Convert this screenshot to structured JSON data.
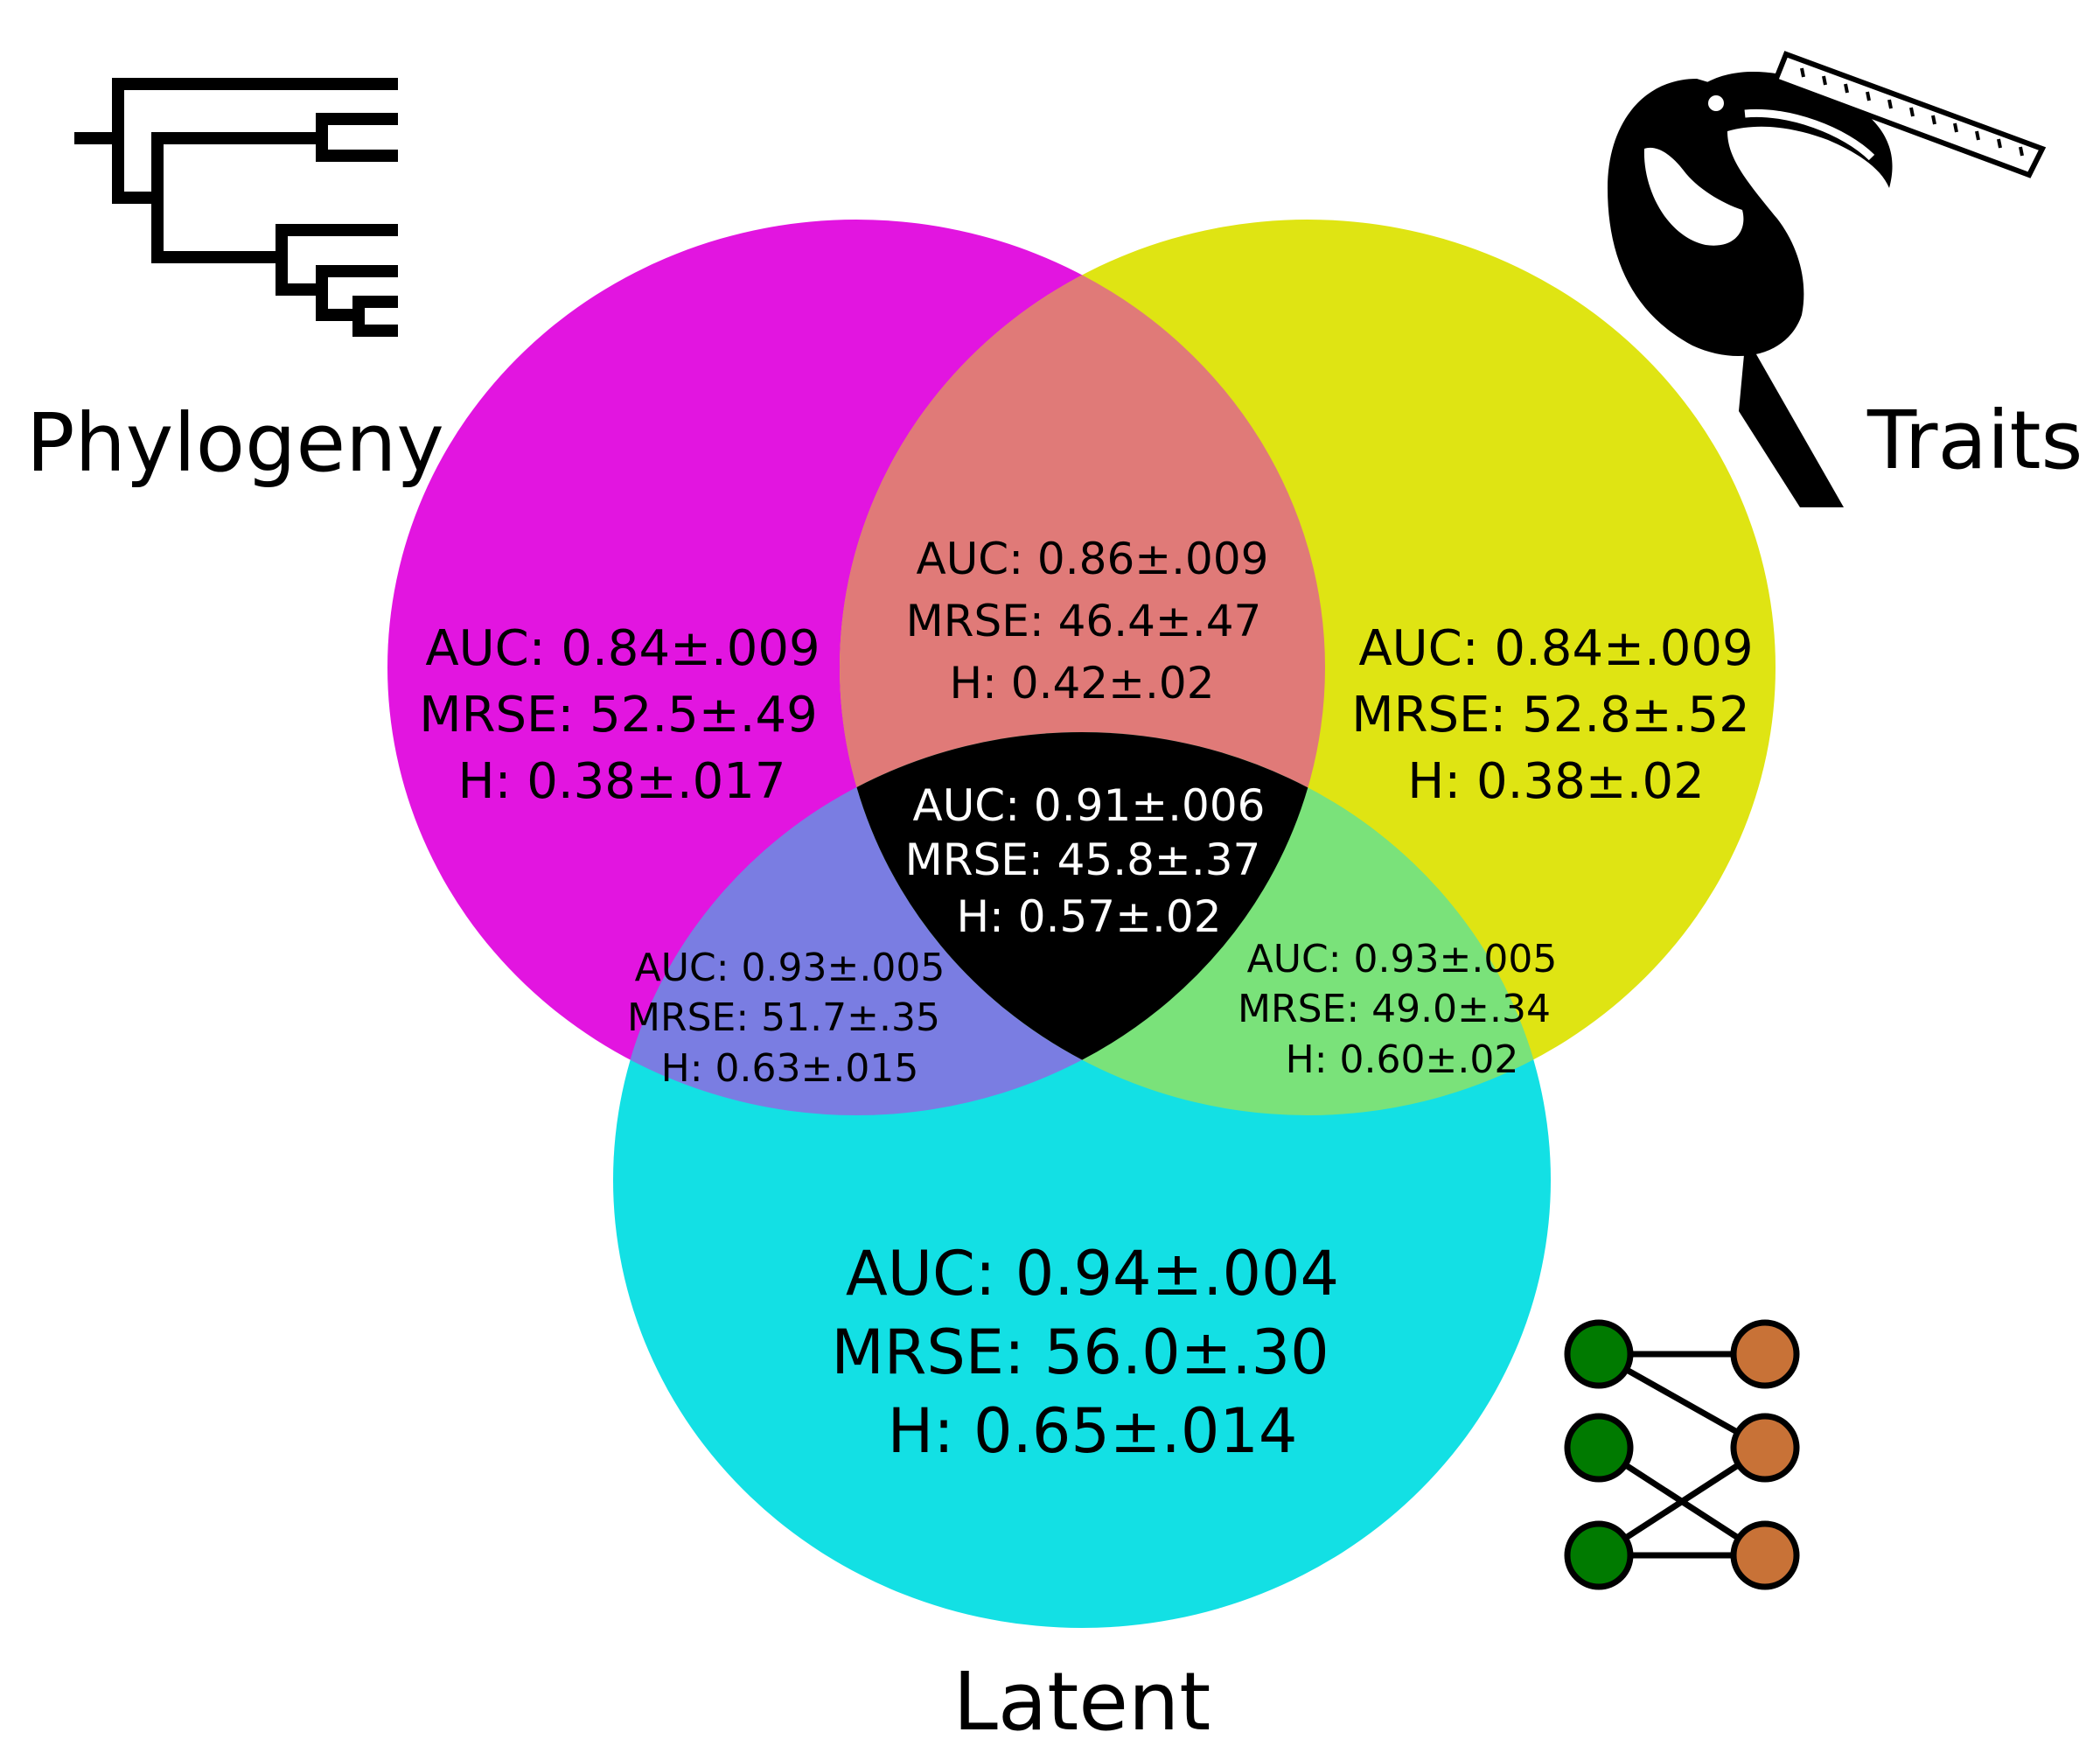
{
  "colors": {
    "phylogeny_only": "#e215e0",
    "traits_only": "#dfe413",
    "latent_only": "#13e0e4",
    "phylogeny_traits": "#e07a78",
    "phylogeny_latent": "#7a7de2",
    "traits_latent": "#7ae27a",
    "all_three": "#000000",
    "network_left_nodes": "#007a00",
    "network_right_nodes": "#c87237"
  },
  "sets": {
    "phylogeny": {
      "label": "Phylogeny",
      "icon": "phylogenetic-tree-icon"
    },
    "traits": {
      "label": "Traits",
      "icon": "toucan-with-ruler-icon"
    },
    "latent": {
      "label": "Latent",
      "icon": "bipartite-network-icon"
    }
  },
  "regions": {
    "phylogeny_only": {
      "auc": "AUC: 0.84±.009",
      "mrse": "MRSE: 52.5±.49",
      "h": "H: 0.38±.017"
    },
    "traits_only": {
      "auc": "AUC: 0.84±.009",
      "mrse": "MRSE: 52.8±.52",
      "h": "H: 0.38±.02"
    },
    "latent_only": {
      "auc": "AUC: 0.94±.004",
      "mrse": "MRSE: 56.0±.30",
      "h": "H: 0.65±.014"
    },
    "phylogeny_traits": {
      "auc": "AUC: 0.86±.009",
      "mrse": "MRSE: 46.4±.47",
      "h": "H: 0.42±.02"
    },
    "phylogeny_latent": {
      "auc": "AUC: 0.93±.005",
      "mrse": "MRSE: 51.7±.35",
      "h": "H: 0.63±.015"
    },
    "traits_latent": {
      "auc": "AUC: 0.93±.005",
      "mrse": "MRSE: 49.0±.34",
      "h": "H: 0.60±.02"
    },
    "all_three": {
      "auc": "AUC: 0.91±.006",
      "mrse": "MRSE: 45.8±.37",
      "h": "H: 0.57±.02"
    }
  }
}
